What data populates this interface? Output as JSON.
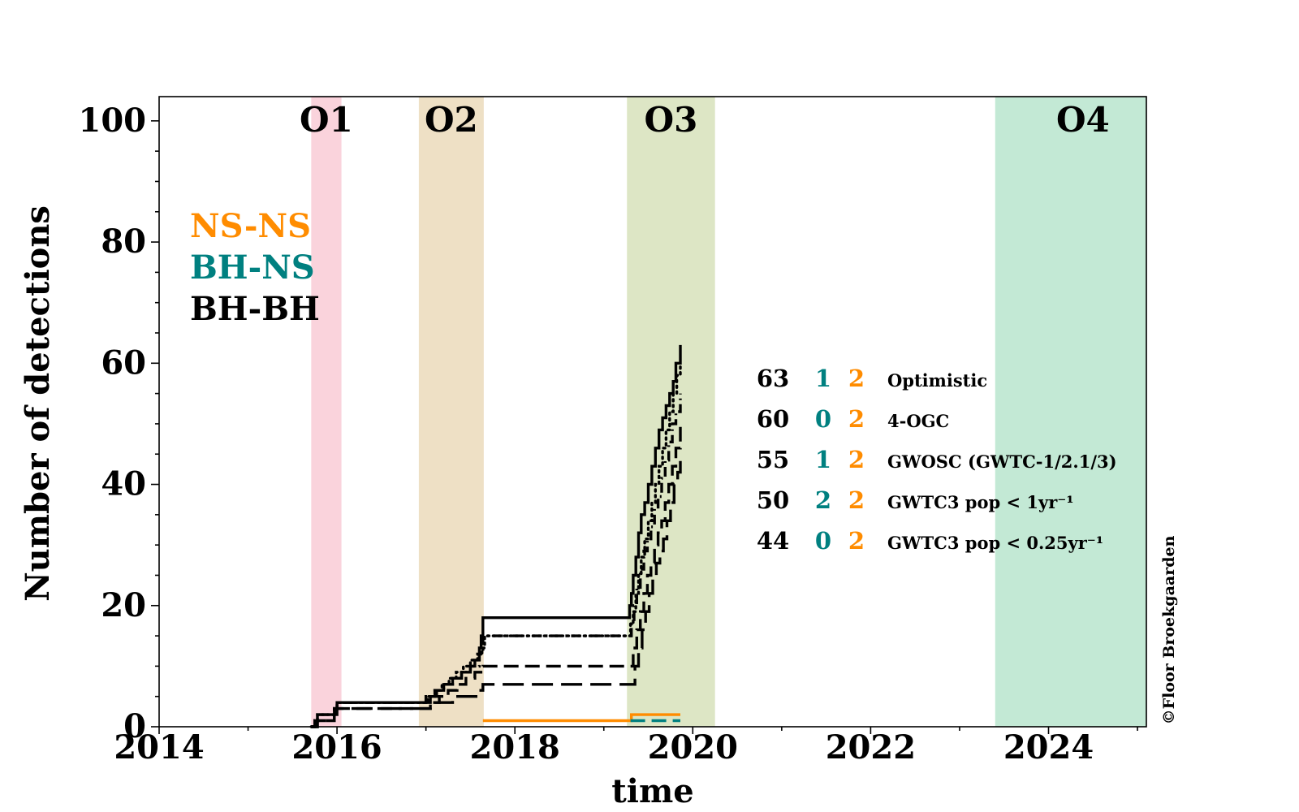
{
  "chart_data": {
    "type": "line",
    "xlabel": "time",
    "ylabel": "Number of detections",
    "xlim": [
      2014,
      2025.1
    ],
    "ylim": [
      0,
      104
    ],
    "x_ticks": [
      "2014",
      "2016",
      "2018",
      "2020",
      "2022",
      "2024"
    ],
    "y_ticks": [
      "0",
      "20",
      "40",
      "60",
      "80",
      "100"
    ],
    "observing_runs": [
      {
        "label": "O1",
        "start": 2015.71,
        "end": 2016.05,
        "color": "#f9c8d3"
      },
      {
        "label": "O2",
        "start": 2016.92,
        "end": 2017.65,
        "color": "#ead8b6"
      },
      {
        "label": "O3",
        "start": 2019.26,
        "end": 2020.25,
        "color": "#d5e0b6"
      },
      {
        "label": "O4",
        "start": 2023.4,
        "end": 2025.1,
        "color": "#b4e3cb"
      }
    ],
    "legend": [
      {
        "label": "NS-NS",
        "color": "#ff8c00"
      },
      {
        "label": "BH-NS",
        "color": "#008080"
      },
      {
        "label": "BH-BH",
        "color": "#000000"
      }
    ],
    "catalog_table": [
      {
        "bbh": "63",
        "bhns": "1",
        "nsns": "2",
        "name": "Optimistic"
      },
      {
        "bbh": "60",
        "bhns": "0",
        "nsns": "2",
        "name": "4-OGC"
      },
      {
        "bbh": "55",
        "bhns": "1",
        "nsns": "2",
        "name": "GWOSC (GWTC-1/2.1/3)"
      },
      {
        "bbh": "50",
        "bhns": "2",
        "nsns": "2",
        "name": "GWTC3 pop < 1yr⁻¹"
      },
      {
        "bbh": "44",
        "bhns": "0",
        "nsns": "2",
        "name": "GWTC3 pop < 0.25yr⁻¹"
      }
    ],
    "credit": "©Floor Broekgaarden",
    "series": [
      {
        "category": "BH-BH",
        "catalog": "Optimistic",
        "style": "solid",
        "color": "#000000",
        "x": [
          2015.71,
          2015.75,
          2015.78,
          2015.97,
          2016.0,
          2017.05,
          2017.12,
          2017.2,
          2017.3,
          2017.4,
          2017.5,
          2017.55,
          2017.6,
          2017.62,
          2017.64,
          2019.27,
          2019.29,
          2019.31,
          2019.33,
          2019.36,
          2019.39,
          2019.42,
          2019.46,
          2019.5,
          2019.54,
          2019.58,
          2019.62,
          2019.66,
          2019.7,
          2019.74,
          2019.78,
          2019.81,
          2019.84,
          2019.86
        ],
        "y": [
          0,
          1,
          2,
          3,
          4,
          5,
          6,
          7,
          8,
          9,
          10,
          11,
          13,
          15,
          18,
          18,
          20,
          22,
          25,
          28,
          32,
          35,
          37,
          40,
          43,
          46,
          49,
          51,
          53,
          55,
          57,
          60,
          60,
          63
        ]
      },
      {
        "category": "BH-BH",
        "catalog": "4-OGC",
        "style": "dotted",
        "color": "#000000",
        "x": [
          2015.71,
          2015.75,
          2015.78,
          2015.97,
          2016.0,
          2017.02,
          2017.1,
          2017.18,
          2017.26,
          2017.34,
          2017.42,
          2017.5,
          2017.58,
          2017.63,
          2017.66,
          2019.27,
          2019.3,
          2019.33,
          2019.36,
          2019.39,
          2019.42,
          2019.46,
          2019.5,
          2019.54,
          2019.58,
          2019.62,
          2019.66,
          2019.7,
          2019.74,
          2019.78,
          2019.82,
          2019.86
        ],
        "y": [
          0,
          1,
          2,
          3,
          4,
          5,
          6,
          7,
          8,
          9,
          10,
          11,
          12,
          13,
          15,
          15,
          17,
          19,
          22,
          25,
          28,
          31,
          34,
          37,
          40,
          43,
          46,
          49,
          52,
          55,
          58,
          60
        ]
      },
      {
        "category": "BH-BH",
        "catalog": "GWOSC (GWTC-1/2.1/3)",
        "style": "dashdot",
        "color": "#000000",
        "x": [
          2015.71,
          2015.75,
          2015.78,
          2015.97,
          2016.0,
          2017.0,
          2017.1,
          2017.2,
          2017.3,
          2017.4,
          2017.5,
          2017.6,
          2017.64,
          2019.28,
          2019.31,
          2019.34,
          2019.37,
          2019.41,
          2019.45,
          2019.49,
          2019.53,
          2019.57,
          2019.61,
          2019.65,
          2019.69,
          2019.73,
          2019.77,
          2019.81,
          2019.86
        ],
        "y": [
          0,
          1,
          2,
          3,
          4,
          5,
          6,
          7,
          8,
          9,
          10,
          12,
          15,
          15,
          17,
          20,
          23,
          26,
          29,
          31,
          33,
          36,
          38,
          41,
          44,
          47,
          50,
          52,
          55
        ]
      },
      {
        "category": "BH-BH",
        "catalog": "GWTC3 pop < 1yr⁻¹",
        "style": "dashed",
        "color": "#000000",
        "x": [
          2015.71,
          2015.78,
          2015.97,
          2016.0,
          2017.05,
          2017.15,
          2017.25,
          2017.35,
          2017.45,
          2017.55,
          2017.64,
          2019.3,
          2019.33,
          2019.37,
          2019.41,
          2019.45,
          2019.49,
          2019.53,
          2019.57,
          2019.61,
          2019.65,
          2019.69,
          2019.73,
          2019.77,
          2019.81,
          2019.86
        ],
        "y": [
          0,
          1,
          2,
          3,
          4,
          5,
          6,
          7,
          8,
          9,
          10,
          10,
          13,
          16,
          19,
          22,
          25,
          27,
          30,
          32,
          34,
          37,
          40,
          43,
          46,
          50
        ]
      },
      {
        "category": "BH-BH",
        "catalog": "GWTC3 pop < 0.25yr⁻¹",
        "style": "loosedash",
        "color": "#000000",
        "x": [
          2015.71,
          2015.78,
          2015.97,
          2016.0,
          2017.05,
          2017.3,
          2017.6,
          2017.64,
          2019.31,
          2019.35,
          2019.39,
          2019.43,
          2019.47,
          2019.51,
          2019.55,
          2019.59,
          2019.63,
          2019.67,
          2019.71,
          2019.75,
          2019.79,
          2019.83,
          2019.86
        ],
        "y": [
          0,
          1,
          2,
          3,
          4,
          5,
          6,
          7,
          7,
          10,
          13,
          16,
          19,
          22,
          25,
          27,
          29,
          31,
          34,
          37,
          40,
          42,
          44
        ]
      },
      {
        "category": "NS-NS",
        "catalog": "all",
        "style": "solid",
        "color": "#ff8c00",
        "x": [
          2017.64,
          2019.31,
          2019.86
        ],
        "y": [
          1,
          2,
          2
        ]
      },
      {
        "category": "BH-NS",
        "catalog": "all",
        "style": "dashed",
        "color": "#008080",
        "x": [
          2019.3,
          2019.86
        ],
        "y": [
          1,
          1
        ]
      }
    ]
  }
}
